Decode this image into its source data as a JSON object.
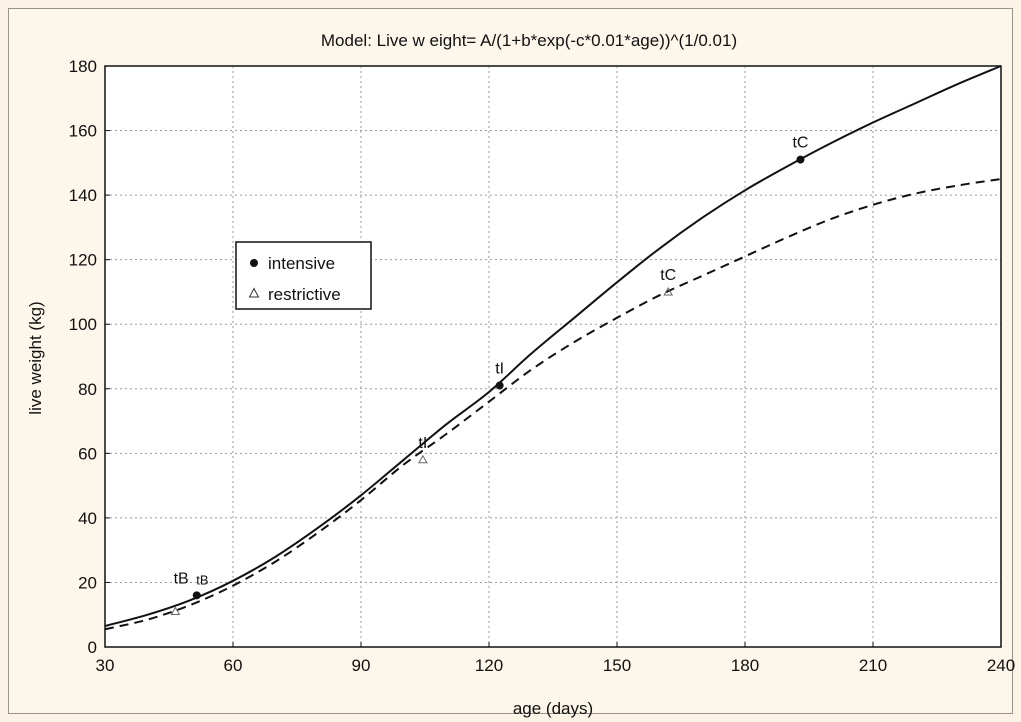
{
  "chart_data": {
    "type": "line",
    "title": "Model: Live w eight= A/(1+b*exp(-c*0.01*age))^(1/0.01)",
    "xlabel": "age (days)",
    "ylabel": "live weight (kg)",
    "xlim": [
      30,
      240
    ],
    "ylim": [
      0,
      180
    ],
    "xticks": [
      30,
      60,
      90,
      120,
      150,
      180,
      210,
      240
    ],
    "yticks": [
      0,
      20,
      40,
      60,
      80,
      100,
      120,
      140,
      160,
      180
    ],
    "grid": true,
    "legend_position": "left, mid-height",
    "series": [
      {
        "name": "intensive",
        "line_style": "solid",
        "marker": "filled-circle",
        "color": "#111111",
        "x": [
          30,
          40,
          50,
          60,
          70,
          80,
          90,
          100,
          110,
          120,
          130,
          140,
          150,
          160,
          170,
          180,
          190,
          200,
          210,
          220,
          230,
          240
        ],
        "y": [
          6.5,
          10,
          14.5,
          20.5,
          28,
          37,
          47,
          58,
          69,
          79,
          91,
          102,
          113,
          123.5,
          133,
          141.5,
          149,
          156,
          162.5,
          168.5,
          174.5,
          180
        ]
      },
      {
        "name": "restrictive",
        "line_style": "dashed",
        "marker": "open-triangle",
        "color": "#111111",
        "x": [
          30,
          40,
          50,
          60,
          70,
          80,
          90,
          100,
          110,
          120,
          130,
          140,
          150,
          160,
          170,
          180,
          190,
          200,
          210,
          220,
          230,
          240
        ],
        "y": [
          5.5,
          8.5,
          13,
          19,
          26.5,
          35.5,
          45.5,
          56.5,
          66,
          76,
          86,
          94.5,
          102,
          109,
          115,
          121,
          127,
          132.5,
          137,
          140.5,
          143,
          145
        ]
      }
    ],
    "annotations": [
      {
        "series": "intensive",
        "label": "tB",
        "x": 51.5,
        "y": 16
      },
      {
        "series": "intensive",
        "label": "tI",
        "x": 122.5,
        "y": 81
      },
      {
        "series": "intensive",
        "label": "tC",
        "x": 193,
        "y": 151
      },
      {
        "series": "restrictive",
        "label": "tB",
        "x": 46.5,
        "y": 11
      },
      {
        "series": "restrictive",
        "label": "tI",
        "x": 104.5,
        "y": 58
      },
      {
        "series": "restrictive",
        "label": "tC",
        "x": 162,
        "y": 110
      }
    ]
  }
}
